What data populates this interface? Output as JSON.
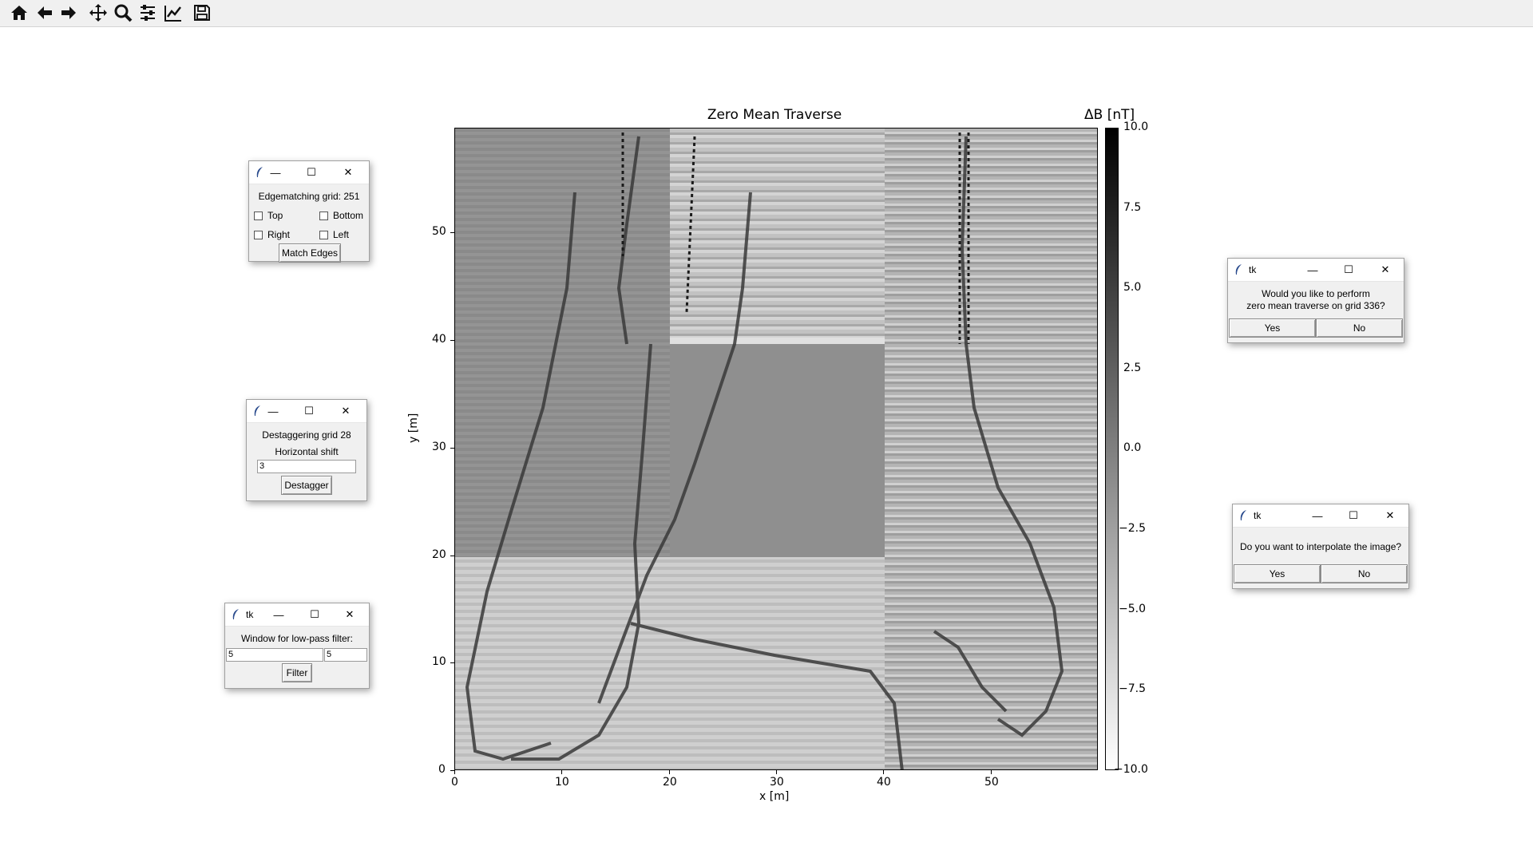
{
  "toolbar": {
    "buttons": [
      {
        "icon": "home-icon",
        "label": "Home"
      },
      {
        "icon": "back-arrow-icon",
        "label": "Back"
      },
      {
        "icon": "forward-arrow-icon",
        "label": "Forward"
      },
      {
        "icon": "pan-move-icon",
        "label": "Pan"
      },
      {
        "icon": "zoom-magnifier-icon",
        "label": "Zoom"
      },
      {
        "icon": "configure-subplots-icon",
        "label": "Subplots"
      },
      {
        "icon": "edit-axis-icon",
        "label": "Customize"
      },
      {
        "icon": "save-floppy-icon",
        "label": "Save"
      }
    ]
  },
  "chart_data": {
    "type": "heatmap",
    "title": "Zero Mean Traverse",
    "xlabel": "x [m]",
    "ylabel": "y [m]",
    "xlim": [
      0,
      60
    ],
    "ylim": [
      0,
      60
    ],
    "xticks": [
      "0",
      "10",
      "20",
      "30",
      "40",
      "50"
    ],
    "yticks": [
      "0",
      "10",
      "20",
      "30",
      "40",
      "50"
    ],
    "colorbar": {
      "label": "ΔB [nT]",
      "range": [
        -10.0,
        10.0
      ],
      "ticks": [
        "10.0",
        "7.5",
        "5.0",
        "2.5",
        "0.0",
        "−2.5",
        "−5.0",
        "−7.5",
        "−10.0"
      ],
      "colormap": "gray_r"
    },
    "description_grids": [
      {
        "x": [
          0,
          20
        ],
        "y": [
          20,
          60
        ]
      },
      {
        "x": [
          20,
          40
        ],
        "y": [
          40,
          60
        ]
      },
      {
        "x": [
          20,
          40
        ],
        "y": [
          20,
          40
        ]
      },
      {
        "x": [
          40,
          60
        ],
        "y": [
          20,
          60
        ]
      },
      {
        "x": [
          0,
          20
        ],
        "y": [
          0,
          20
        ]
      },
      {
        "x": [
          20,
          40
        ],
        "y": [
          0,
          20
        ]
      },
      {
        "x": [
          40,
          60
        ],
        "y": [
          0,
          20
        ]
      }
    ]
  },
  "windows": {
    "edgematch": {
      "label": "Edgematching grid: 251",
      "checks": [
        "Top",
        "Bottom",
        "Right",
        "Left"
      ],
      "button": "Match Edges"
    },
    "destagger": {
      "label1": "Destaggering grid 28",
      "label2": "Horizontal shift",
      "entry_value": "3",
      "button": "Destagger"
    },
    "lowpass": {
      "title": "tk",
      "label": "Window for low-pass filter:",
      "entry1": "5",
      "entry2": "5",
      "button": "Filter"
    },
    "zeromean": {
      "title": "tk",
      "line1": "Would you like to perform",
      "line2": "zero mean traverse on grid 336?",
      "yes": "Yes",
      "no": "No"
    },
    "interpolate": {
      "title": "tk",
      "label": "Do you want to interpolate the image?",
      "yes": "Yes",
      "no": "No"
    }
  },
  "window_controls": {
    "minimize": "—",
    "maximize": "☐",
    "close": "✕"
  }
}
